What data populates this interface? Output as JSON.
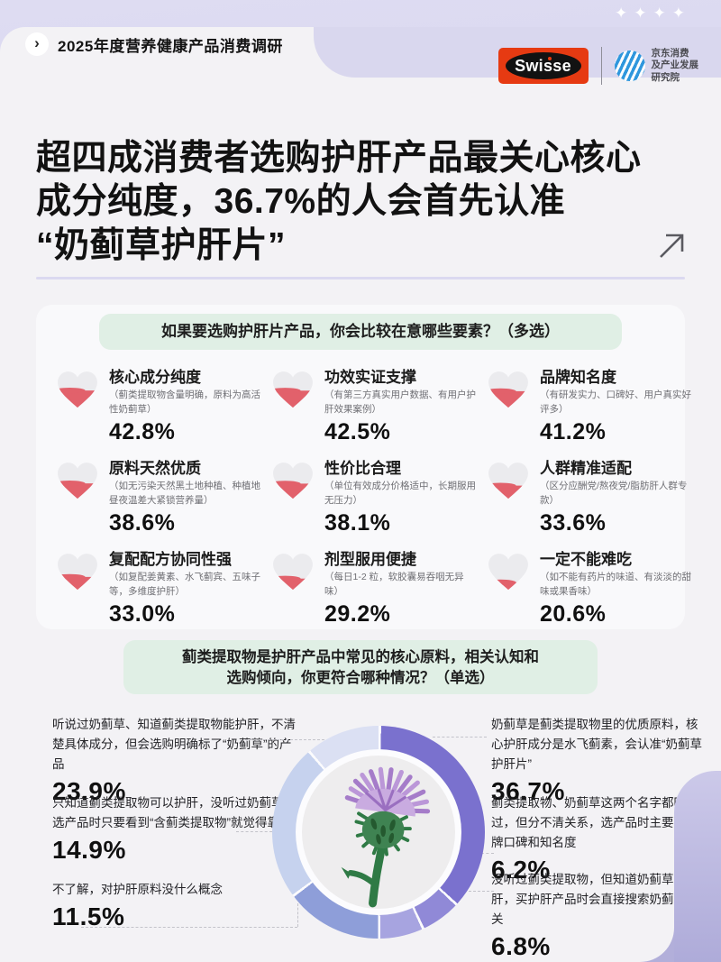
{
  "theme": {
    "lavender_bg": "#d6d4ed",
    "card_bg": "#f3f2f5",
    "question_pill_green": "#e0efe5",
    "heart_base": "#ebebee",
    "heart_fill_red": "#e2616b",
    "swisse_red": "#e63a12",
    "jd_blue": "#2f97dd",
    "text_dark": "#121212"
  },
  "header": {
    "sparkle_icon": "✦",
    "sparkle_count": 4,
    "breadcrumb_chevron": "›",
    "breadcrumb": "2025年度营养健康产品消费调研",
    "swisse_logo_text": "Swisse",
    "jd_logo_lines": [
      "京东消费",
      "及产业发展",
      "研究院"
    ]
  },
  "title_lines": [
    "超四成消费者选购护肝产品最关心核心",
    "成分纯度，36.7%的人会首先认准",
    "“奶蓟草护肝片”"
  ],
  "section1": {
    "question": "如果要选购护肝片产品，你会比较在意哪些要素？（多选）",
    "items": [
      {
        "title": "核心成分纯度",
        "desc": "（蓟类提取物含量明确，原料为高活性奶蓟草）",
        "value": "42.8%"
      },
      {
        "title": "功效实证支撑",
        "desc": "（有第三方真实用户数据、有用户护肝效果案例）",
        "value": "42.5%"
      },
      {
        "title": "品牌知名度",
        "desc": "（有研发实力、口碑好、用户真实好评多）",
        "value": "41.2%"
      },
      {
        "title": "原料天然优质",
        "desc": "（如无污染天然黑土地种植、种植地昼夜温差大紧锁营养量）",
        "value": "38.6%"
      },
      {
        "title": "性价比合理",
        "desc": "（单位有效成分价格适中，长期服用无压力）",
        "value": "38.1%"
      },
      {
        "title": "人群精准适配",
        "desc": "（区分应酬党/熬夜党/脂肪肝人群专款）",
        "value": "33.6%"
      },
      {
        "title": "复配配方协同性强",
        "desc": "（如复配姜黄素、水飞蓟宾、五味子等，多维度护肝）",
        "value": "33.0%"
      },
      {
        "title": "剂型服用便捷",
        "desc": "（每日1-2 粒，软胶囊易吞咽无异味）",
        "value": "29.2%"
      },
      {
        "title": "一定不能难吃",
        "desc": "（如不能有药片的味道、有淡淡的甜味或果香味）",
        "value": "20.6%"
      }
    ]
  },
  "section2": {
    "question_lines": [
      "蓟类提取物是护肝产品中常见的核心原料，相关认知和",
      "选购倾向，你更符合哪种情况？（单选）"
    ],
    "left_options": [
      {
        "text": "听说过奶蓟草、知道蓟类提取物能护肝，不清楚具体成分，但会选购明确标了“奶蓟草”的产品",
        "value": "23.9%"
      },
      {
        "text": "只知道蓟类提取物可以护肝，没听过奶蓟草，选产品时只要看到“含蓟类提取物”就觉得靠谱",
        "value": "14.9%"
      },
      {
        "text": "不了解，对护肝原料没什么概念",
        "value": "11.5%"
      }
    ],
    "right_options": [
      {
        "text": "奶蓟草是蓟类提取物里的优质原料，核心护肝成分是水飞蓟素，会认准“奶蓟草护肝片”",
        "value": "36.7%"
      },
      {
        "text": "蓟类提取物、奶蓟草这两个名字都听过，但分不清关系，选产品时主要看品牌口碑和知名度",
        "value": "6.2%"
      },
      {
        "text": "没听过蓟类提取物，但知道奶蓟草能护肝，买护肝产品时会直接搜索奶蓟草相关",
        "value": "6.8%"
      }
    ]
  },
  "chart_data": [
    {
      "type": "bar",
      "subtype": "pictogram-hearts-multi-select",
      "title": "如果要选购护肝片产品，你会比较在意哪些要素？（多选）",
      "categories": [
        "核心成分纯度",
        "功效实证支撑",
        "品牌知名度",
        "原料天然优质",
        "性价比合理",
        "人群精准适配",
        "复配配方协同性强",
        "剂型服用便捷",
        "一定不能难吃"
      ],
      "values": [
        42.8,
        42.5,
        41.2,
        38.6,
        38.1,
        33.6,
        33.0,
        29.2,
        20.6
      ],
      "unit": "%"
    },
    {
      "type": "pie",
      "subtype": "donut-single-select",
      "title": "蓟类提取物是护肝产品中常见的核心原料，相关认知和选购倾向，你更符合哪种情况？（单选）",
      "center_illustration": "milk-thistle-flower",
      "order": "clockwise-from-12-oclock",
      "segments": [
        {
          "label": "奶蓟草是蓟类提取物里的优质原料，核心护肝成分是水飞蓟素，会认准“奶蓟草护肝片”",
          "value": 36.7,
          "color": "#7a71ce"
        },
        {
          "label": "蓟类提取物、奶蓟草这两个名字都听过，但分不清关系，选产品时主要看品牌口碑和知名度",
          "value": 6.2,
          "color": "#9089d7"
        },
        {
          "label": "没听过蓟类提取物，但知道奶蓟草能护肝，买护肝产品时会直接搜索奶蓟草相关",
          "value": 6.8,
          "color": "#a7a4e0"
        },
        {
          "label": "只知道蓟类提取物可以护肝，没听过奶蓟草，选产品时只要看到“含蓟类提取物”就觉得靠谱",
          "value": 14.9,
          "color": "#8e9ed9"
        },
        {
          "label": "听说过奶蓟草、知道蓟类提取物能护肝，不清楚具体成分，但会选购明确标了“奶蓟草”的产品",
          "value": 23.9,
          "color": "#c6d2ee"
        },
        {
          "label": "不了解，对护肝原料没什么概念",
          "value": 11.5,
          "color": "#dbe0f3"
        }
      ]
    }
  ]
}
